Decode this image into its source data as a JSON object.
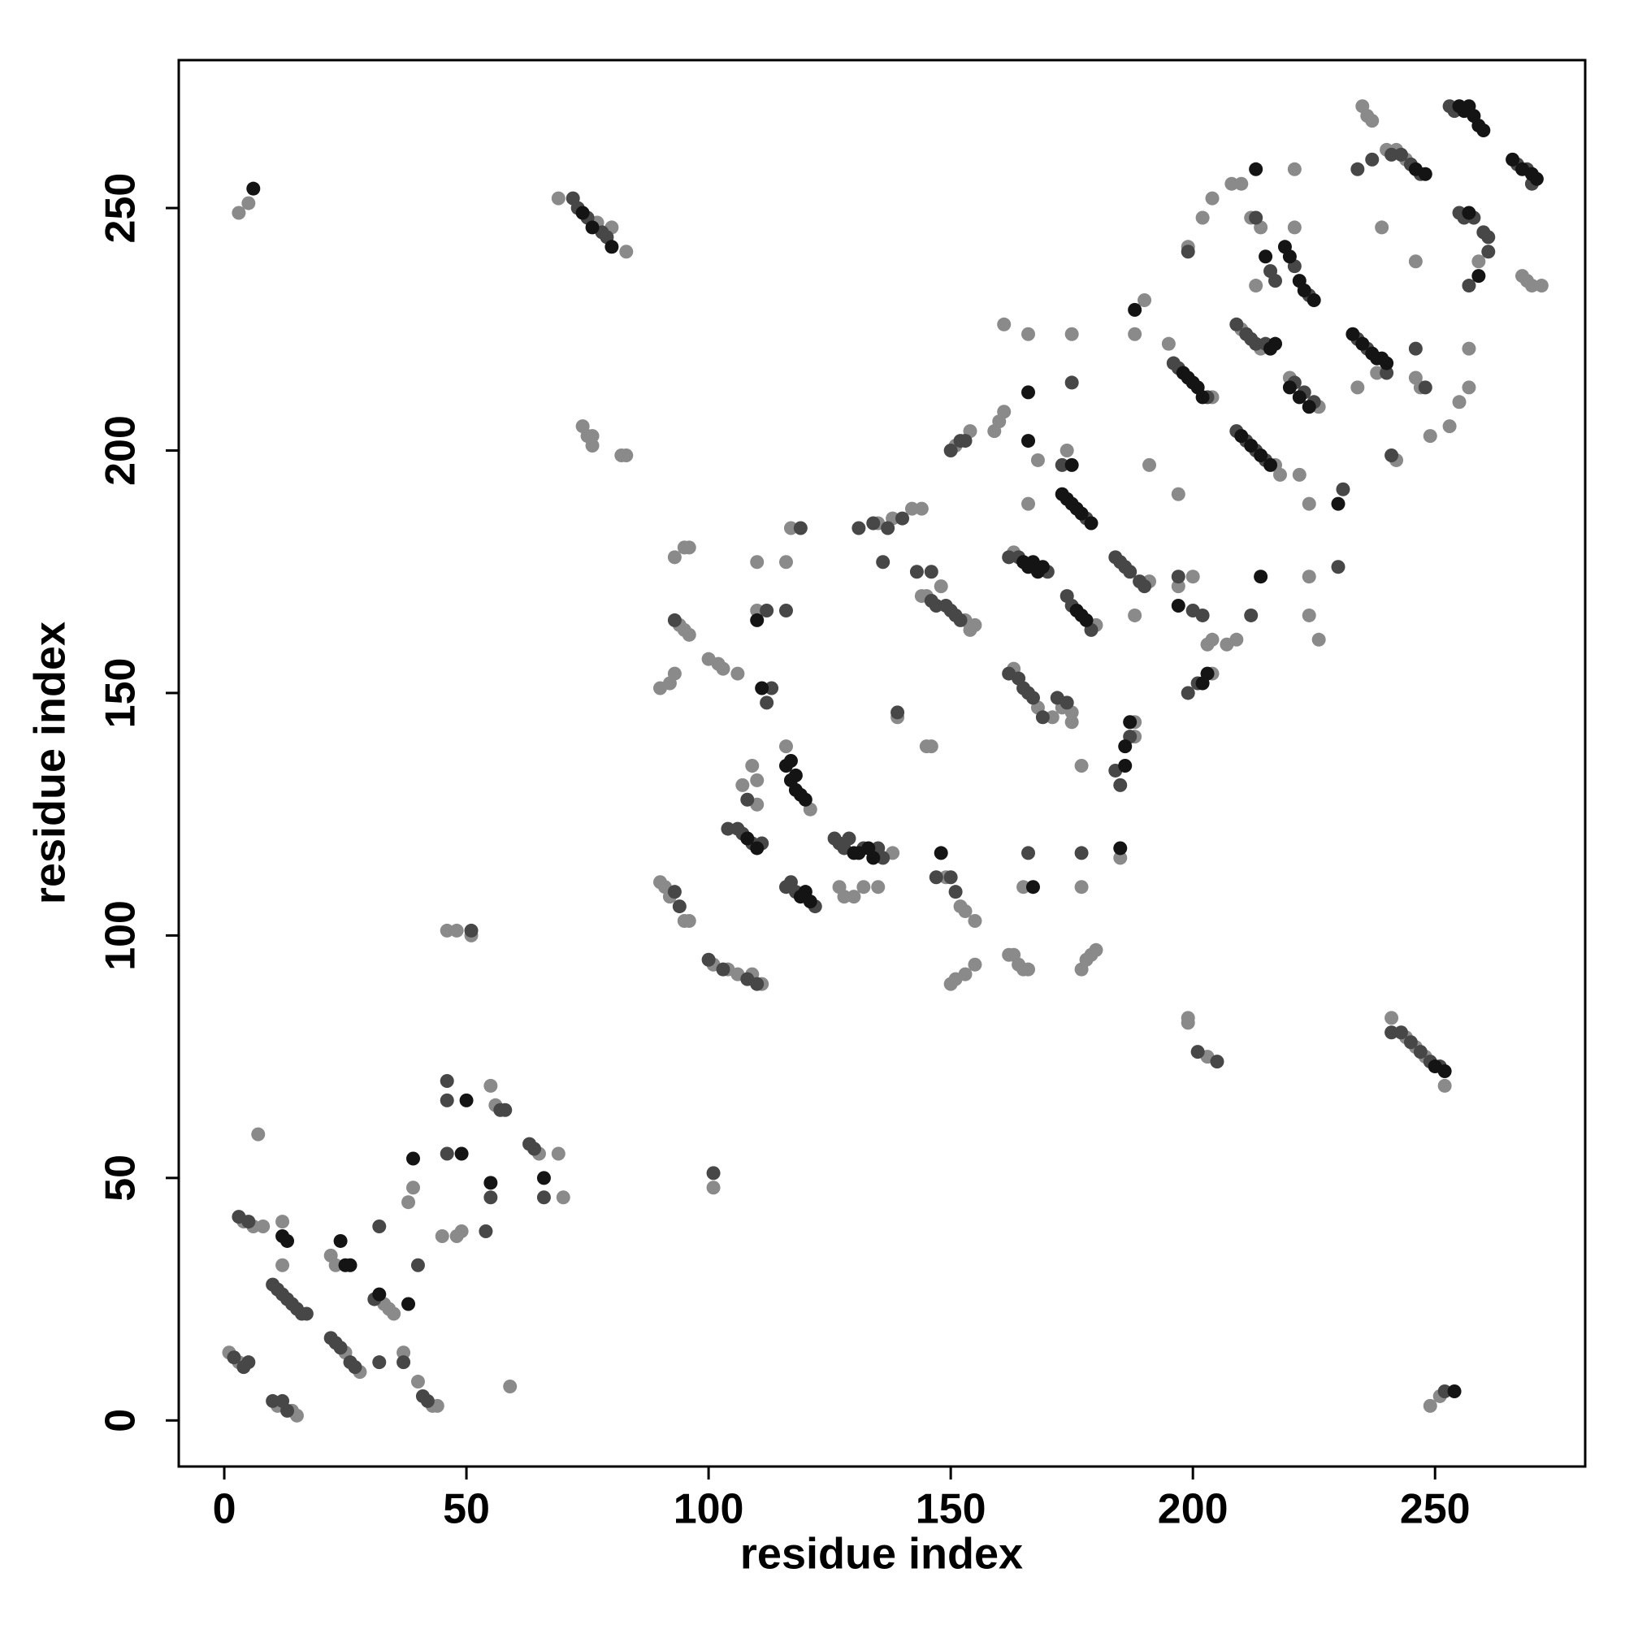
{
  "chart_data": {
    "type": "scatter",
    "xlabel": "residue index",
    "ylabel": "residue index",
    "xlim": [
      -9.4,
      281
    ],
    "ylim": [
      -9.5,
      280.5
    ],
    "xticks": [
      0,
      50,
      100,
      150,
      200,
      250
    ],
    "yticks": [
      0,
      50,
      100,
      150,
      200,
      250
    ],
    "grid": false,
    "series": [
      {
        "color": "#8a8a8a",
        "x": [
          1,
          3,
          11,
          14,
          15,
          4,
          6,
          8,
          7,
          12,
          12,
          22,
          23,
          25,
          28,
          33,
          34,
          35,
          37,
          38,
          39,
          40,
          43,
          44,
          45,
          48,
          49,
          55,
          56,
          59,
          65,
          69,
          70,
          3,
          5,
          46,
          48,
          51,
          101,
          69,
          77,
          80,
          83,
          74,
          75,
          76,
          76,
          82,
          83,
          90,
          91,
          92,
          95,
          96,
          90,
          92,
          93,
          94,
          95,
          96,
          93,
          95,
          96,
          100,
          102,
          103,
          106,
          101,
          104,
          106,
          109,
          111,
          107,
          109,
          110,
          110,
          110,
          110,
          116,
          116,
          117,
          121,
          120,
          138,
          127,
          128,
          130,
          132,
          135,
          135,
          138,
          142,
          144,
          139,
          144,
          145,
          148,
          153,
          154,
          155,
          145,
          146,
          149,
          152,
          153,
          155,
          151,
          154,
          150,
          151,
          153,
          155,
          159,
          160,
          161,
          161,
          162,
          163,
          164,
          165,
          166,
          163,
          168,
          163,
          165,
          166,
          166,
          168,
          171,
          173,
          175,
          175,
          174,
          175,
          180,
          177,
          177,
          177,
          178,
          179,
          180,
          185,
          188,
          188,
          191,
          188,
          188,
          190,
          191,
          195,
          204,
          197,
          197,
          204,
          199,
          199,
          203,
          200,
          199,
          203,
          204,
          207,
          209,
          202,
          204,
          208,
          210,
          210,
          214,
          216,
          217,
          218,
          212,
          213,
          214,
          221,
          221,
          220,
          226,
          222,
          224,
          224,
          224,
          226,
          235,
          236,
          237,
          240,
          242,
          244,
          234,
          238,
          239,
          242,
          246,
          246,
          247,
          249,
          253,
          241,
          244,
          246,
          248,
          252,
          249,
          251,
          259,
          257,
          257,
          255,
          268,
          269,
          270,
          272
        ],
        "values": [
          14,
          12,
          3,
          2,
          1,
          41,
          40,
          40,
          59,
          41,
          32,
          34,
          32,
          14,
          10,
          24,
          23,
          22,
          14,
          45,
          48,
          8,
          3,
          3,
          38,
          38,
          39,
          69,
          65,
          7,
          55,
          55,
          46,
          249,
          251,
          101,
          101,
          100,
          48,
          252,
          247,
          246,
          241,
          205,
          203,
          203,
          201,
          199,
          199,
          111,
          110,
          108,
          103,
          103,
          151,
          152,
          154,
          164,
          163,
          162,
          178,
          180,
          180,
          157,
          156,
          155,
          154,
          94,
          93,
          92,
          92,
          90,
          131,
          135,
          132,
          127,
          167,
          177,
          139,
          177,
          184,
          126,
          109,
          117,
          110,
          108,
          108,
          110,
          110,
          185,
          186,
          188,
          188,
          145,
          170,
          170,
          172,
          165,
          163,
          164,
          139,
          139,
          112,
          106,
          105,
          103,
          201,
          204,
          90,
          91,
          92,
          94,
          204,
          206,
          208,
          226,
          96,
          96,
          94,
          93,
          93,
          155,
          147,
          179,
          110,
          189,
          224,
          198,
          145,
          147,
          144,
          146,
          200,
          224,
          164,
          93,
          110,
          135,
          95,
          96,
          97,
          116,
          144,
          141,
          173,
          166,
          224,
          231,
          197,
          222,
          211,
          172,
          191,
          154,
          82,
          83,
          75,
          174,
          242,
          160,
          161,
          160,
          161,
          248,
          252,
          255,
          255,
          225,
          221,
          221,
          197,
          195,
          248,
          234,
          246,
          246,
          258,
          215,
          209,
          195,
          189,
          174,
          166,
          161,
          271,
          269,
          268,
          262,
          262,
          260,
          213,
          216,
          246,
          198,
          239,
          215,
          213,
          203,
          205,
          83,
          79,
          77,
          75,
          69,
          3,
          5,
          239,
          221,
          213,
          210,
          236,
          235,
          234,
          234
        ]
      },
      {
        "color": "#474747",
        "x": [
          2,
          4,
          5,
          10,
          12,
          13,
          3,
          5,
          10,
          11,
          12,
          13,
          14,
          15,
          16,
          17,
          22,
          23,
          24,
          26,
          27,
          31,
          32,
          32,
          37,
          40,
          41,
          42,
          46,
          46,
          54,
          55,
          57,
          58,
          63,
          64,
          66,
          72,
          73,
          75,
          78,
          79,
          51,
          101,
          93,
          94,
          93,
          100,
          103,
          108,
          110,
          104,
          106,
          107,
          109,
          111,
          108,
          112,
          113,
          112,
          116,
          117,
          118,
          122,
          119,
          116,
          126,
          127,
          128,
          129,
          132,
          135,
          136,
          131,
          134,
          137,
          140,
          136,
          139,
          143,
          146,
          147,
          149,
          150,
          151,
          152,
          146,
          147,
          150,
          151,
          150,
          152,
          153,
          162,
          164,
          170,
          162,
          164,
          165,
          166,
          167,
          169,
          172,
          174,
          174,
          175,
          179,
          178,
          173,
          175,
          166,
          177,
          184,
          185,
          187,
          184,
          185,
          186,
          187,
          189,
          190,
          196,
          197,
          203,
          197,
          199,
          201,
          199,
          200,
          202,
          205,
          201,
          212,
          209,
          211,
          212,
          213,
          215,
          209,
          211,
          213,
          215,
          213,
          216,
          217,
          221,
          224,
          221,
          223,
          225,
          231,
          230,
          234,
          236,
          234,
          237,
          241,
          243,
          245,
          247,
          241,
          240,
          246,
          248,
          241,
          243,
          245,
          247,
          249,
          251,
          252,
          253,
          255,
          256,
          258,
          260,
          261,
          257,
          267,
          269,
          270,
          261,
          46,
          254
        ],
        "values": [
          13,
          11,
          12,
          4,
          4,
          2,
          42,
          41,
          28,
          27,
          26,
          25,
          24,
          23,
          22,
          22,
          17,
          16,
          15,
          12,
          11,
          25,
          12,
          40,
          12,
          32,
          5,
          4,
          66,
          55,
          39,
          46,
          64,
          64,
          57,
          56,
          46,
          252,
          250,
          248,
          245,
          244,
          101,
          51,
          109,
          106,
          165,
          95,
          93,
          91,
          90,
          122,
          122,
          121,
          119,
          119,
          128,
          148,
          151,
          167,
          110,
          111,
          109,
          106,
          184,
          167,
          120,
          119,
          118,
          120,
          118,
          118,
          116,
          184,
          185,
          184,
          186,
          177,
          146,
          175,
          169,
          168,
          168,
          167,
          166,
          165,
          175,
          112,
          112,
          109,
          200,
          202,
          202,
          178,
          178,
          175,
          154,
          153,
          151,
          150,
          149,
          145,
          149,
          148,
          170,
          168,
          163,
          186,
          197,
          214,
          117,
          117,
          134,
          131,
          141,
          178,
          177,
          176,
          175,
          173,
          172,
          218,
          217,
          211,
          174,
          150,
          152,
          241,
          167,
          166,
          74,
          76,
          166,
          226,
          224,
          223,
          222,
          222,
          204,
          202,
          200,
          198,
          248,
          237,
          235,
          238,
          232,
          214,
          212,
          210,
          192,
          176,
          223,
          221,
          258,
          260,
          261,
          261,
          259,
          257,
          199,
          216,
          221,
          213,
          80,
          80,
          78,
          76,
          74,
          73,
          6,
          271,
          249,
          248,
          248,
          245,
          244,
          234,
          259,
          258,
          255,
          241,
          70,
          270
        ]
      },
      {
        "color": "#141414",
        "x": [
          6,
          13,
          12,
          24,
          25,
          26,
          32,
          38,
          39,
          50,
          49,
          55,
          66,
          111,
          110,
          116,
          117,
          117,
          118,
          118,
          119,
          120,
          120,
          119,
          121,
          130,
          131,
          133,
          134,
          148,
          165,
          166,
          167,
          168,
          169,
          173,
          174,
          175,
          176,
          177,
          179,
          175,
          177,
          186,
          186,
          187,
          198,
          199,
          200,
          201,
          202,
          203,
          216,
          217,
          214,
          219,
          220,
          222,
          223,
          225,
          220,
          222,
          224,
          230,
          238,
          239,
          240,
          254,
          255,
          256,
          257,
          258,
          259,
          260,
          266,
          268,
          270,
          271,
          257,
          259,
          166,
          166,
          167,
          176,
          178,
          210,
          212,
          214,
          216,
          185,
          188,
          197,
          202,
          233,
          235,
          237,
          246,
          248,
          213,
          215,
          250,
          252,
          108,
          110,
          74,
          76,
          80
        ],
        "values": [
          254,
          37,
          38,
          37,
          32,
          32,
          26,
          24,
          54,
          66,
          55,
          49,
          50,
          151,
          165,
          135,
          136,
          132,
          130,
          133,
          129,
          128,
          109,
          108,
          107,
          117,
          117,
          118,
          116,
          117,
          177,
          176,
          177,
          175,
          176,
          191,
          190,
          189,
          188,
          187,
          185,
          197,
          166,
          139,
          135,
          144,
          216,
          215,
          214,
          213,
          211,
          154,
          221,
          222,
          174,
          242,
          240,
          235,
          233,
          231,
          213,
          211,
          209,
          189,
          219,
          219,
          218,
          6,
          271,
          270,
          271,
          269,
          267,
          266,
          260,
          258,
          257,
          256,
          249,
          236,
          202,
          212,
          110,
          167,
          165,
          203,
          201,
          199,
          197,
          118,
          229,
          168,
          152,
          224,
          222,
          220,
          258,
          257,
          258,
          240,
          73,
          72,
          120,
          118,
          249,
          246,
          242
        ]
      }
    ]
  }
}
